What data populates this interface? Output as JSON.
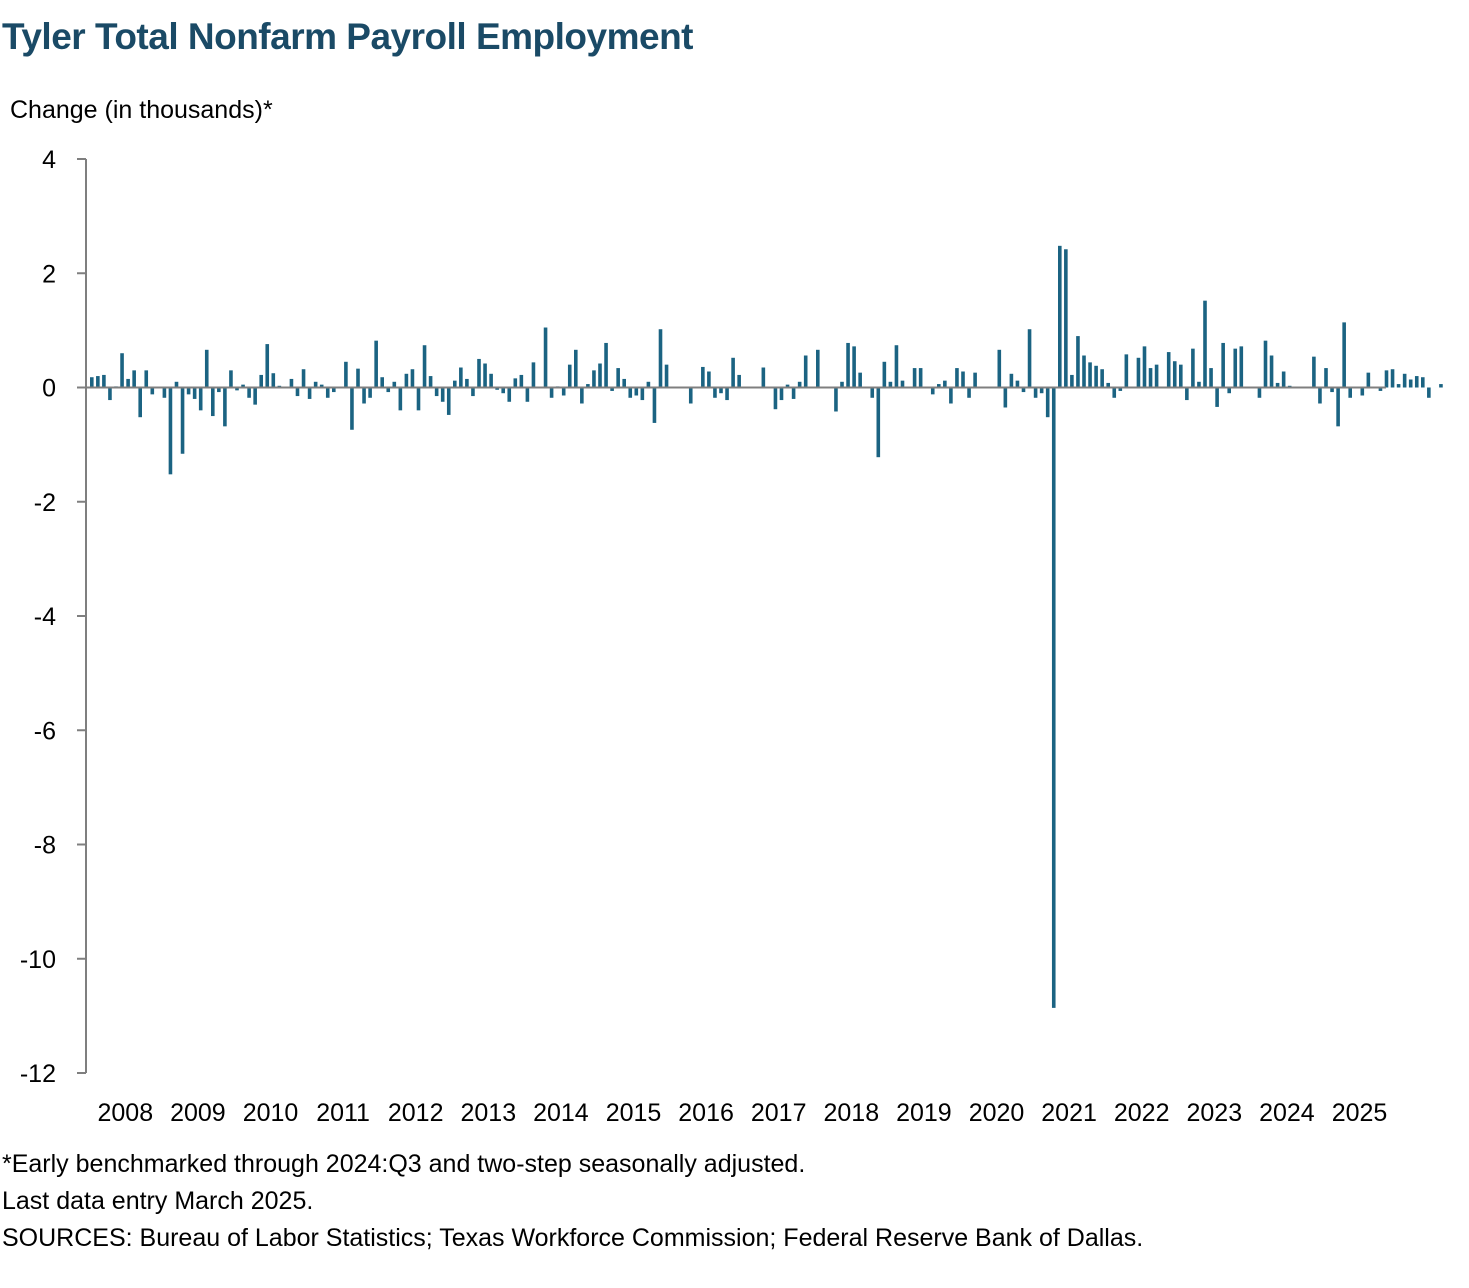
{
  "chart_data": {
    "type": "bar",
    "title": "Tyler Total Nonfarm Payroll Employment",
    "ylabel": "Change (in thousands)*",
    "xlabel": "",
    "ylim": [
      -12,
      4
    ],
    "yticks": [
      4,
      2,
      0,
      -2,
      -4,
      -6,
      -8,
      -10,
      -12
    ],
    "x_tick_labels": [
      "2008",
      "2009",
      "2010",
      "2011",
      "2012",
      "2013",
      "2014",
      "2015",
      "2016",
      "2017",
      "2018",
      "2019",
      "2020",
      "2021",
      "2022",
      "2023",
      "2024",
      "2025"
    ],
    "x_start": "2008-01",
    "x_end": "2025-12",
    "grid": false,
    "colors": {
      "series": "#1b6382",
      "muted": "#a6a6a6",
      "axis": "#7f7f7f",
      "title": "#1a4a66"
    },
    "series": [
      {
        "values": [
          0.18,
          0.2,
          0.22,
          -0.22,
          0.02,
          0.6,
          0.15,
          0.3,
          -0.52,
          0.3,
          -0.12,
          0.0,
          -0.18,
          -1.52,
          0.1,
          -1.16,
          -0.12,
          -0.2,
          -0.4,
          0.66,
          -0.5,
          -0.08,
          -0.68,
          0.3,
          -0.05,
          0.05,
          -0.18,
          -0.3,
          0.22,
          0.76,
          0.25,
          0.03,
          0.0,
          0.15,
          -0.15,
          0.32,
          -0.2,
          0.1,
          0.05,
          -0.18,
          -0.08,
          0.0,
          0.45,
          -0.74,
          0.33,
          -0.28,
          -0.18,
          0.82,
          0.18,
          -0.08,
          0.1,
          -0.4,
          0.24,
          0.32,
          -0.4,
          0.74,
          0.2,
          -0.15,
          -0.25,
          -0.48,
          0.12,
          0.35,
          0.15,
          -0.15,
          0.5,
          0.42,
          0.24,
          -0.04,
          -0.1,
          -0.25,
          0.16,
          0.22,
          -0.25,
          0.44,
          0.0,
          1.05,
          -0.18,
          0.02,
          -0.14,
          0.4,
          0.66,
          -0.28,
          0.06,
          0.3,
          0.42,
          0.78,
          -0.06,
          0.34,
          0.15,
          -0.18,
          -0.14,
          -0.22,
          0.1,
          -0.62,
          1.02,
          0.4,
          0.0,
          0.0,
          0.0,
          -0.28,
          0.0,
          0.36,
          0.28,
          -0.18,
          -0.1,
          -0.22,
          0.52,
          0.22,
          0.0,
          0.0,
          0.0,
          0.35,
          0.0,
          -0.38,
          -0.22,
          0.05,
          -0.2,
          0.1,
          0.56,
          0.0,
          0.66,
          0.0,
          0.0,
          -0.42,
          0.1,
          0.78,
          0.72,
          0.26,
          0.0,
          -0.18,
          -1.22,
          0.45,
          0.1,
          0.74,
          0.12,
          0.0,
          0.34,
          0.34,
          0.0,
          -0.12,
          0.06,
          0.12,
          -0.28,
          0.34,
          0.28,
          -0.18,
          0.26,
          0.0,
          0.0,
          0.0,
          0.66,
          -0.35,
          0.24,
          0.12,
          -0.08,
          1.02,
          -0.18,
          -0.1,
          -0.52,
          -10.86,
          2.48,
          2.42,
          0.22,
          0.9,
          0.56,
          0.44,
          0.38,
          0.32,
          0.08,
          -0.18,
          -0.06,
          0.58,
          0.0,
          0.52,
          0.72,
          0.34,
          0.4,
          0.0,
          0.62,
          0.46,
          0.4,
          -0.22,
          0.68,
          0.1,
          1.52,
          0.34,
          -0.34,
          0.78,
          -0.1,
          0.68,
          0.72,
          0.0,
          0.0,
          -0.18,
          0.82,
          0.56,
          0.08,
          0.28,
          0.03,
          0.0,
          0.0,
          0.0,
          0.54,
          -0.28,
          0.34,
          -0.08,
          -0.68,
          1.14,
          -0.18,
          0.0,
          -0.14,
          0.26,
          0.0,
          -0.06,
          0.3,
          0.32,
          0.06,
          0.24,
          0.14,
          0.2,
          0.18,
          -0.18,
          0.0,
          0.06
        ]
      }
    ]
  },
  "footnotes": [
    "*Early benchmarked through 2024:Q3 and two-step seasonally adjusted.",
    "Last data entry March 2025.",
    "SOURCES: Bureau of Labor Statistics; Texas Workforce Commission; Federal Reserve Bank of Dallas."
  ]
}
